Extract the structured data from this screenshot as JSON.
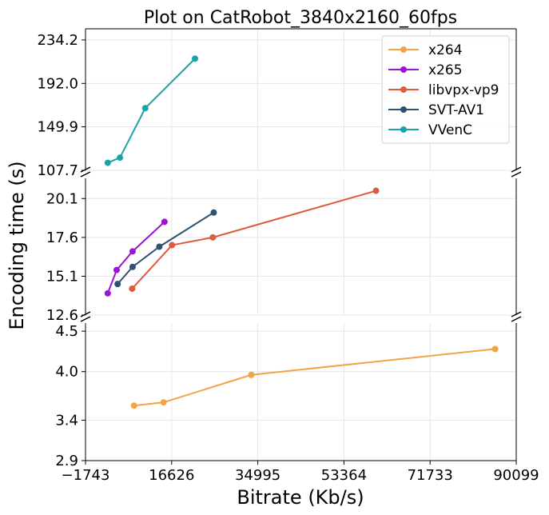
{
  "chart_data": {
    "type": "line",
    "title": "Plot on CatRobot_3840x2160_60fps",
    "xlabel": "Bitrate (Kb/s)",
    "ylabel": "Encoding time (s)",
    "xlim": [
      -1743,
      90099
    ],
    "x_ticks": [
      "−1743",
      "16626",
      "34995",
      "53364",
      "71733",
      "90099"
    ],
    "grid": true,
    "legend_position": "top-right",
    "y_segments": [
      {
        "name": "upper",
        "ylim": [
          107.7,
          245
        ],
        "y_ticks": [
          "107.7",
          "149.9",
          "192.0",
          "234.2"
        ]
      },
      {
        "name": "middle",
        "ylim": [
          12.6,
          21.4
        ],
        "y_ticks": [
          "12.6",
          "15.1",
          "17.6",
          "20.1"
        ]
      },
      {
        "name": "lower",
        "ylim": [
          2.9,
          4.6
        ],
        "y_ticks": [
          "2.9",
          "3.4",
          "4.0",
          "4.5"
        ]
      }
    ],
    "series": [
      {
        "name": "x264",
        "color": "#f2a444",
        "segment": "lower",
        "x": [
          8600,
          14900,
          33600,
          85600
        ],
        "y": [
          3.58,
          3.62,
          3.96,
          4.28
        ]
      },
      {
        "name": "x265",
        "color": "#9b14d6",
        "segment": "middle",
        "x": [
          3000,
          4900,
          8300,
          15100
        ],
        "y": [
          14.0,
          15.5,
          16.7,
          18.6
        ]
      },
      {
        "name": "libvpx-vp9",
        "color": "#e05a3c",
        "segment": "middle",
        "x": [
          8200,
          16700,
          25400,
          60200
        ],
        "y": [
          14.3,
          17.1,
          17.6,
          20.6
        ]
      },
      {
        "name": "SVT-AV1",
        "color": "#2d5272",
        "segment": "middle",
        "x": [
          5100,
          8300,
          14000,
          25600
        ],
        "y": [
          14.6,
          15.7,
          17.0,
          19.2
        ]
      },
      {
        "name": "VVenC",
        "color": "#1ba3ad",
        "segment": "upper",
        "x": [
          3000,
          5600,
          11000,
          21600
        ],
        "y": [
          115,
          120,
          168,
          216
        ]
      }
    ]
  }
}
